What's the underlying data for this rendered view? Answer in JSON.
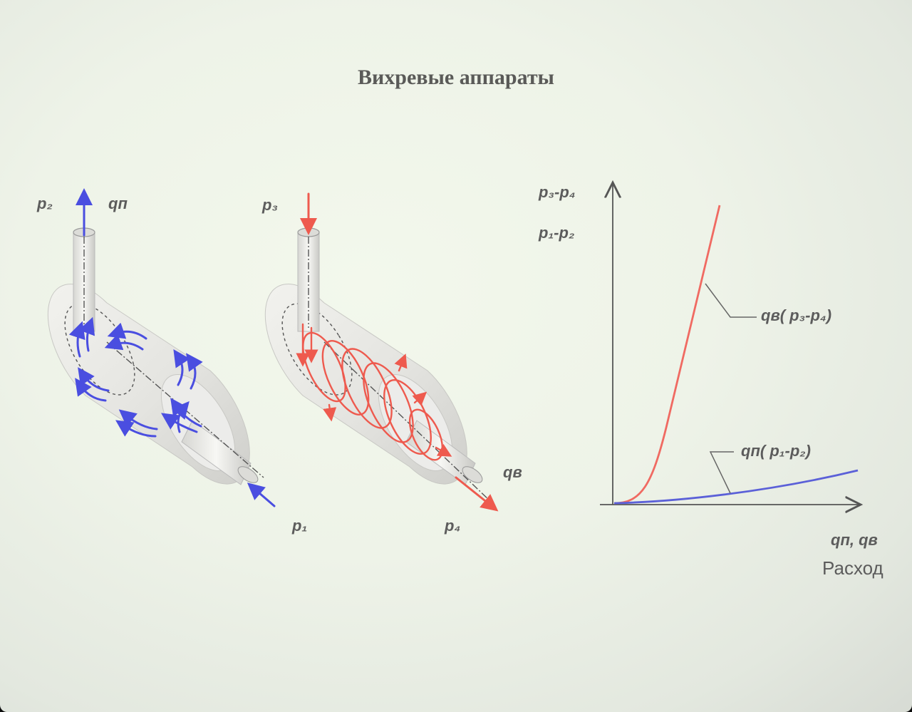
{
  "title": "Вихревые аппараты",
  "left_device": {
    "label_p2": "p₂",
    "label_q": "qп",
    "label_p1": "p₁",
    "flow_color": "#4a4ee0"
  },
  "right_device": {
    "label_p3": "p₃",
    "label_q": "qв",
    "label_p4": "p₄",
    "flow_color": "#f0685c"
  },
  "graph": {
    "y_label_1": "p₃-p₄",
    "y_label_2": "p₁-p₂",
    "x_label": "qп, qв",
    "x_caption": "Расход",
    "curve_red_label": "qв( p₃-p₄)",
    "curve_blue_label": "qп( p₁-p₂)",
    "red_color": "#f06a62",
    "blue_color": "#5b60d8"
  }
}
